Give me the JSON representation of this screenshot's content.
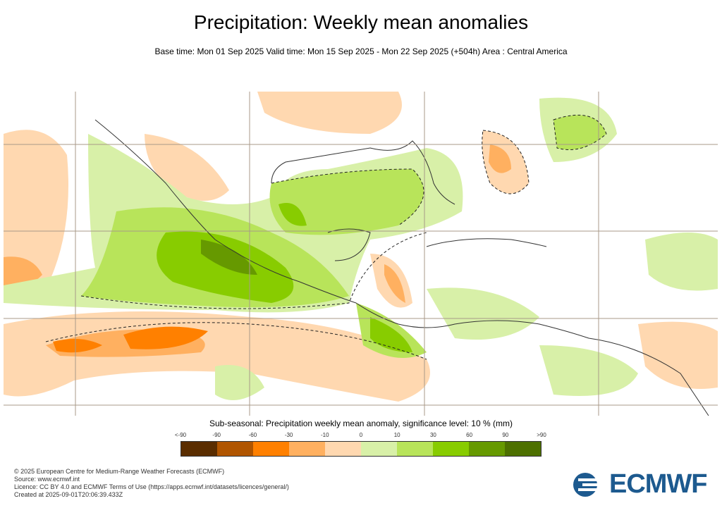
{
  "header": {
    "title": "Precipitation: Weekly mean anomalies",
    "subtitle": "Base time: Mon 01 Sep 2025 Valid time: Mon 15 Sep 2025 - Mon 22 Sep 2025 (+504h) Area : Central America"
  },
  "legend": {
    "title": "Sub-seasonal: Precipitation weekly mean anomaly, significance level: 10 % (mm)",
    "ticks": [
      "<-90",
      "-90",
      "-60",
      "-30",
      "-10",
      "0",
      "10",
      "30",
      "60",
      "90",
      ">90"
    ],
    "colors": [
      "#5a2d00",
      "#b05500",
      "#ff8000",
      "#ffb060",
      "#ffd8b0",
      "#d8f0a8",
      "#b8e45a",
      "#88cc00",
      "#669900",
      "#4d7000"
    ]
  },
  "footer": {
    "line1": "© 2025 European Centre for Medium-Range Weather Forecasts (ECMWF)",
    "line2": "Source: www.ecmwf.int",
    "line3": "Licence: CC BY 4.0 and ECMWF Terms of Use (https://apps.ecmwf.int/datasets/licences/general/)",
    "line4": "Created at 2025-09-01T20:06:39.433Z"
  },
  "logo": {
    "text": "ECMWF"
  }
}
